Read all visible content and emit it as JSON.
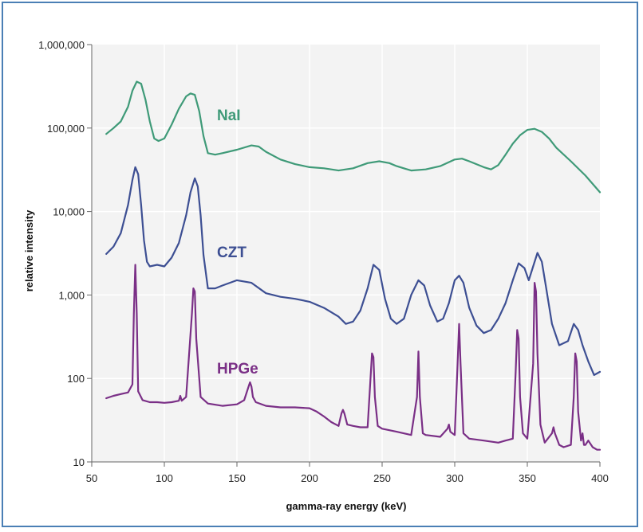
{
  "colors": {
    "frame": "#4a7fb5",
    "plot_background": "#f3f3f3",
    "gridline": "#ffffff",
    "axis": "#666666",
    "nai": "#3f9a78",
    "czt": "#3d4f93",
    "hpge": "#7a2f86"
  },
  "chart_data": {
    "type": "line",
    "xlabel": "gamma-ray energy (keV)",
    "ylabel": "relative intensity",
    "xlim": [
      50,
      400
    ],
    "ylim": [
      10,
      1000000
    ],
    "yscale": "log",
    "grid": true,
    "legend": "inline labels",
    "x_ticks": [
      {
        "value": 50,
        "label": "50"
      },
      {
        "value": 100,
        "label": "100"
      },
      {
        "value": 150,
        "label": "150"
      },
      {
        "value": 200,
        "label": "200"
      },
      {
        "value": 250,
        "label": "250"
      },
      {
        "value": 300,
        "label": "300"
      },
      {
        "value": 350,
        "label": "350"
      },
      {
        "value": 400,
        "label": "400"
      }
    ],
    "y_ticks": [
      {
        "value": 10,
        "label": "10"
      },
      {
        "value": 100,
        "label": "100"
      },
      {
        "value": 1000,
        "label": "1,000"
      },
      {
        "value": 10000,
        "label": "10,000"
      },
      {
        "value": 100000,
        "label": "100,000"
      },
      {
        "value": 1000000,
        "label": "1,000,000"
      }
    ],
    "series": [
      {
        "name": "NaI",
        "color_key": "nai",
        "x": [
          60,
          65,
          70,
          75,
          78,
          81,
          84,
          87,
          90,
          93,
          96,
          100,
          105,
          110,
          115,
          118,
          121,
          124,
          127,
          130,
          135,
          140,
          150,
          160,
          165,
          170,
          180,
          190,
          200,
          210,
          220,
          230,
          240,
          248,
          255,
          260,
          270,
          280,
          290,
          300,
          305,
          310,
          320,
          325,
          330,
          335,
          340,
          345,
          350,
          355,
          360,
          365,
          370,
          380,
          390,
          400
        ],
        "values": [
          85000,
          100000,
          120000,
          180000,
          280000,
          360000,
          340000,
          220000,
          120000,
          75000,
          70000,
          75000,
          110000,
          170000,
          240000,
          260000,
          250000,
          160000,
          80000,
          50000,
          48000,
          50000,
          55000,
          62000,
          60000,
          52000,
          42000,
          37000,
          34000,
          33000,
          31000,
          33000,
          38000,
          40000,
          38000,
          35000,
          31000,
          32000,
          35000,
          42000,
          43000,
          40000,
          34000,
          32000,
          36000,
          48000,
          65000,
          82000,
          95000,
          98000,
          90000,
          75000,
          58000,
          40000,
          27000,
          17000
        ]
      },
      {
        "name": "CZT",
        "color_key": "czt",
        "x": [
          60,
          65,
          70,
          75,
          78,
          80,
          82,
          84,
          86,
          88,
          90,
          95,
          100,
          105,
          110,
          115,
          118,
          121,
          123,
          125,
          127,
          130,
          135,
          140,
          150,
          160,
          170,
          180,
          190,
          200,
          210,
          220,
          225,
          230,
          235,
          240,
          244,
          248,
          252,
          256,
          260,
          265,
          270,
          275,
          279,
          283,
          288,
          292,
          296,
          300,
          303,
          306,
          310,
          315,
          320,
          325,
          330,
          335,
          340,
          344,
          348,
          351,
          354,
          357,
          360,
          363,
          367,
          372,
          378,
          382,
          385,
          388,
          392,
          396,
          400
        ],
        "values": [
          3100,
          3800,
          5500,
          12000,
          24000,
          34000,
          28000,
          12000,
          4500,
          2500,
          2200,
          2300,
          2200,
          2800,
          4200,
          9000,
          17000,
          25000,
          20000,
          9000,
          3000,
          1200,
          1200,
          1300,
          1500,
          1400,
          1050,
          950,
          900,
          830,
          700,
          550,
          450,
          480,
          650,
          1200,
          2300,
          2000,
          900,
          520,
          450,
          520,
          1000,
          1500,
          1300,
          750,
          480,
          520,
          800,
          1500,
          1700,
          1400,
          700,
          430,
          350,
          380,
          520,
          800,
          1500,
          2400,
          2100,
          1500,
          2200,
          3200,
          2500,
          1200,
          450,
          250,
          280,
          450,
          380,
          250,
          160,
          110,
          120
        ]
      },
      {
        "name": "HPGe",
        "color_key": "hpge",
        "x": [
          60,
          65,
          70,
          75,
          78,
          79,
          80,
          81,
          82,
          85,
          90,
          95,
          100,
          105,
          110,
          111,
          112,
          115,
          119,
          120,
          121,
          122,
          125,
          130,
          140,
          150,
          155,
          158,
          159,
          160,
          161,
          163,
          170,
          180,
          190,
          200,
          205,
          210,
          215,
          220,
          222,
          223,
          224,
          226,
          230,
          235,
          240,
          243,
          244,
          245,
          247,
          250,
          260,
          270,
          274,
          275,
          276,
          278,
          280,
          290,
          295,
          296,
          297,
          300,
          302,
          303,
          304,
          306,
          310,
          320,
          330,
          335,
          340,
          342,
          343,
          344,
          345,
          347,
          350,
          354,
          355,
          356,
          357,
          359,
          362,
          367,
          368,
          369,
          372,
          375,
          380,
          382,
          383,
          384,
          385,
          387,
          388,
          389,
          390,
          392,
          395,
          398,
          400
        ],
        "values": [
          58,
          62,
          65,
          68,
          85,
          600,
          2300,
          600,
          70,
          55,
          52,
          52,
          51,
          52,
          54,
          62,
          54,
          60,
          600,
          1200,
          1100,
          300,
          60,
          50,
          47,
          49,
          55,
          80,
          90,
          80,
          60,
          52,
          47,
          45,
          45,
          44,
          40,
          35,
          30,
          27,
          38,
          42,
          38,
          28,
          27,
          26,
          26,
          200,
          180,
          60,
          27,
          25,
          23,
          21,
          60,
          210,
          60,
          22,
          21,
          20,
          25,
          28,
          23,
          21,
          150,
          450,
          150,
          22,
          19,
          18,
          17,
          18,
          19,
          120,
          380,
          300,
          60,
          22,
          19,
          150,
          1400,
          1100,
          200,
          28,
          17,
          22,
          26,
          22,
          16,
          15,
          16,
          60,
          200,
          160,
          40,
          18,
          22,
          16,
          16,
          18,
          15,
          14,
          14
        ]
      }
    ]
  }
}
